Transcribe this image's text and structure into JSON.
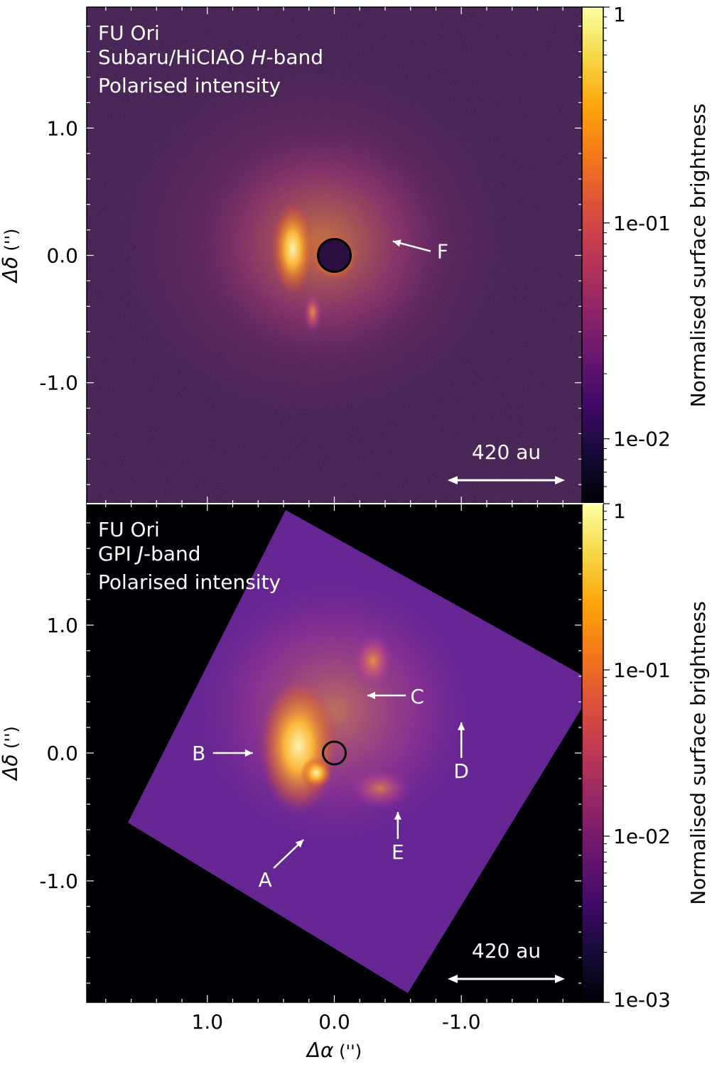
{
  "chart_data": {
    "type": "heatmap",
    "shared_x_axis": {
      "label_main": "Δα",
      "label_unit": "('')",
      "ticks": [
        "1.0",
        "0.0",
        "-1.0"
      ],
      "tick_values": [
        1.0,
        0.0,
        -1.0
      ],
      "xlim": [
        1.95,
        -1.95
      ]
    },
    "colorbar": {
      "label": "Normalised surface brightness",
      "scale": "log",
      "colormap": "inferno"
    },
    "panels": [
      {
        "id": "top",
        "lines": [
          "FU Ori",
          "Subaru/HiCIAO ",
          "Polarised intensity"
        ],
        "band": "H",
        "band_suffix": "-band",
        "ylabel_main": "Δδ",
        "ylabel_unit": "('')",
        "yticks": [
          "1.0",
          "0.0",
          "-1.0"
        ],
        "ytick_values": [
          1.0,
          0.0,
          -1.0
        ],
        "ylim": [
          -1.95,
          1.95
        ],
        "colorbar_ticks": [
          "1",
          "1e-01",
          "1e-02"
        ],
        "colorbar_tick_values": [
          1,
          0.1,
          0.01
        ],
        "colorbar_range": [
          0.005,
          1
        ],
        "scale_bar": "420 au",
        "features": [
          {
            "label": "F",
            "x": -0.45,
            "y": 0.1
          }
        ]
      },
      {
        "id": "bottom",
        "lines": [
          "FU Ori",
          "GPI ",
          "Polarised intensity"
        ],
        "band": "J",
        "band_suffix": "-band",
        "ylabel_main": "Δδ",
        "ylabel_unit": "('')",
        "yticks": [
          "1.0",
          "0.0",
          "-1.0"
        ],
        "ytick_values": [
          1.0,
          0.0,
          -1.0
        ],
        "ylim": [
          -1.95,
          1.95
        ],
        "colorbar_ticks": [
          "1",
          "1e-01",
          "1e-02",
          "1e-03"
        ],
        "colorbar_tick_values": [
          1,
          0.1,
          0.01,
          0.001
        ],
        "colorbar_range": [
          0.001,
          1
        ],
        "scale_bar": "420 au",
        "features": [
          {
            "label": "A",
            "x": 0.22,
            "y": -0.6
          },
          {
            "label": "B",
            "x": 0.62,
            "y": 0.0
          },
          {
            "label": "C",
            "x": -0.25,
            "y": 0.45
          },
          {
            "label": "D",
            "x": -1.0,
            "y": 0.25
          },
          {
            "label": "E",
            "x": -0.5,
            "y": -0.45
          }
        ]
      }
    ]
  }
}
